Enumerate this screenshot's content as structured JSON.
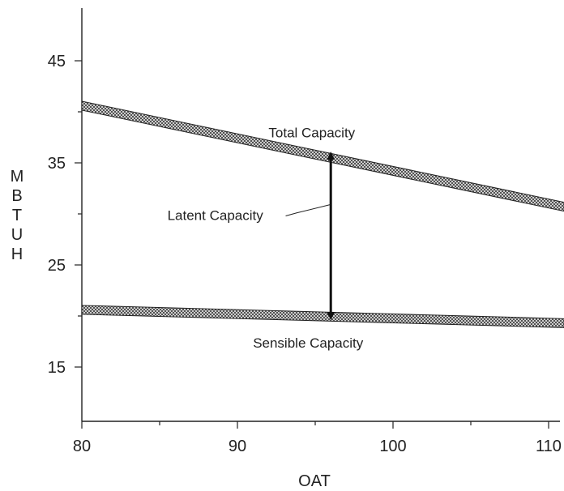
{
  "chart_data": {
    "type": "line",
    "xlabel": "OAT",
    "ylabel": "MBTUH",
    "xlim": [
      80,
      111
    ],
    "ylim": [
      10,
      50
    ],
    "xticks": [
      80,
      90,
      100,
      110
    ],
    "yticks": [
      15,
      25,
      35,
      45
    ],
    "grid": false,
    "series": [
      {
        "name": "Total Capacity",
        "x": [
          80,
          111
        ],
        "y": [
          40.6,
          30.7
        ]
      },
      {
        "name": "Sensible Capacity",
        "x": [
          80,
          111
        ],
        "y": [
          20.6,
          19.3
        ]
      }
    ],
    "annotations": [
      {
        "text": "Latent Capacity",
        "arrow_x": 96,
        "arrow_y": [
          35.7,
          20
        ]
      }
    ]
  }
}
